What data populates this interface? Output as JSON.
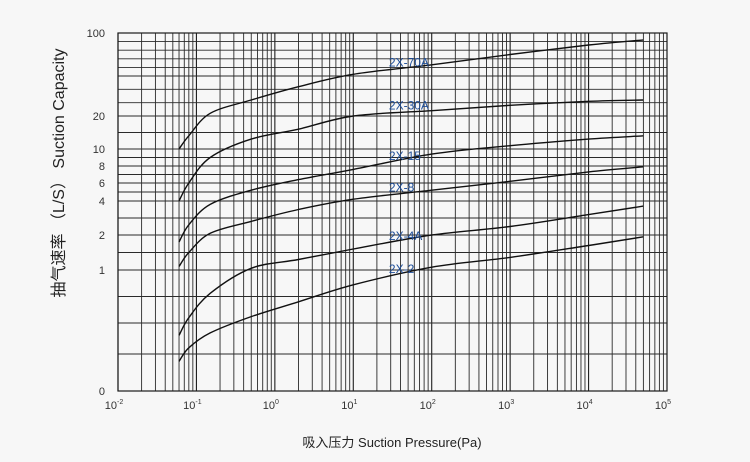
{
  "chart_data": {
    "type": "line",
    "title": "",
    "xlabel": "吸入压力 Suction Pressure(Pa)",
    "ylabel": "抽气速率 （L/S） Suction Capacity",
    "x_scale": "log",
    "xlim": [
      0.01,
      100000
    ],
    "x_ticks": [
      {
        "base": "10",
        "exp": "-2"
      },
      {
        "base": "10",
        "exp": "-1"
      },
      {
        "base": "10",
        "exp": "0"
      },
      {
        "base": "10",
        "exp": "1"
      },
      {
        "base": "10",
        "exp": "2"
      },
      {
        "base": "10",
        "exp": "3"
      },
      {
        "base": "10",
        "exp": "4"
      },
      {
        "base": "10",
        "exp": "5"
      }
    ],
    "y_ticks": [
      "100",
      "20",
      "10",
      "8",
      "6",
      "4",
      "2",
      "1",
      "0"
    ],
    "grid": true,
    "series": [
      {
        "name": "2X-70A",
        "x": [
          0.06,
          0.08,
          0.15,
          0.5,
          2,
          10,
          100,
          1000,
          10000,
          50000
        ],
        "y": [
          10,
          14,
          22,
          32,
          42,
          52,
          63,
          75,
          86,
          92
        ]
      },
      {
        "name": "2X-30A",
        "x": [
          0.06,
          0.08,
          0.15,
          0.5,
          2,
          10,
          100,
          1000,
          10000,
          50000
        ],
        "y": [
          4,
          6,
          9,
          13,
          16,
          20,
          24,
          28,
          31,
          32
        ]
      },
      {
        "name": "2X-15",
        "x": [
          0.06,
          0.08,
          0.15,
          0.5,
          2,
          10,
          100,
          1000,
          10000,
          50000
        ],
        "y": [
          1.8,
          2.6,
          3.8,
          5.2,
          6.4,
          7.6,
          9.4,
          11,
          13,
          14
        ]
      },
      {
        "name": "2X-8",
        "x": [
          0.06,
          0.08,
          0.15,
          0.5,
          2,
          10,
          100,
          1000,
          10000,
          50000
        ],
        "y": [
          1.1,
          1.5,
          2.1,
          2.8,
          3.5,
          4.2,
          5.2,
          6.2,
          7.3,
          7.9
        ]
      },
      {
        "name": "2X-4A",
        "x": [
          0.06,
          0.08,
          0.15,
          0.5,
          2,
          10,
          100,
          1000,
          10000,
          50000
        ],
        "y": [
          0.4,
          0.55,
          0.78,
          1.05,
          1.3,
          1.6,
          2.0,
          2.5,
          3.2,
          3.7
        ]
      },
      {
        "name": "2X-2",
        "x": [
          0.06,
          0.08,
          0.15,
          0.5,
          2,
          10,
          100,
          1000,
          10000,
          50000
        ],
        "y": [
          0.2,
          0.3,
          0.42,
          0.56,
          0.7,
          0.86,
          1.08,
          1.36,
          1.7,
          1.95
        ]
      }
    ]
  },
  "colors": {
    "background": "#f7f7f7",
    "grid": "#2a2a2a",
    "curve": "#111111",
    "series_label": "#1f4f9a"
  }
}
